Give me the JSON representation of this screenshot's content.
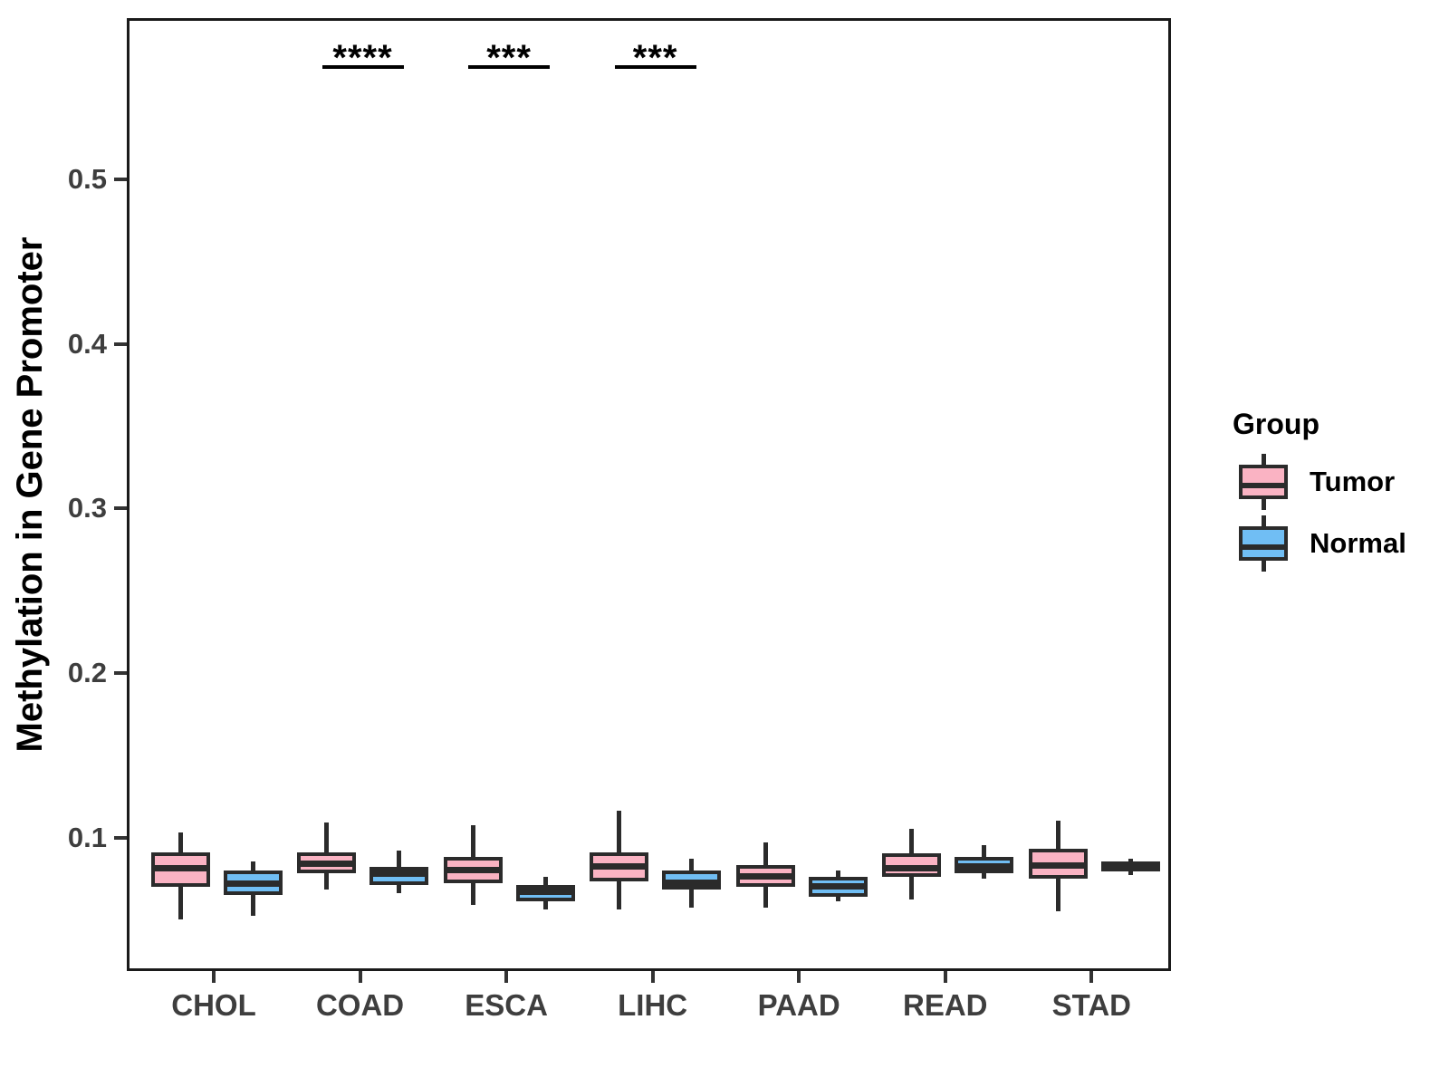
{
  "chart_data": {
    "type": "grouped_boxplot",
    "title": "",
    "xlabel": "",
    "ylabel": "Methylation in Gene Promoter",
    "categories": [
      "CHOL",
      "COAD",
      "ESCA",
      "LIHC",
      "PAAD",
      "READ",
      "STAD"
    ],
    "yticks": [
      0.1,
      0.2,
      0.3,
      0.4,
      0.5
    ],
    "ylim": [
      0.019,
      0.598
    ],
    "grid": false,
    "stroke_color": "#2b2b2b",
    "series": [
      {
        "name": "Tumor",
        "color": "#fab3c3",
        "boxes": [
          {
            "category": "CHOL",
            "low": 0.052,
            "q1": 0.072,
            "median": 0.083,
            "q3": 0.093,
            "high": 0.105
          },
          {
            "category": "COAD",
            "low": 0.07,
            "q1": 0.08,
            "median": 0.086,
            "q3": 0.093,
            "high": 0.111
          },
          {
            "category": "ESCA",
            "low": 0.061,
            "q1": 0.074,
            "median": 0.082,
            "q3": 0.09,
            "high": 0.109
          },
          {
            "category": "LIHC",
            "low": 0.058,
            "q1": 0.075,
            "median": 0.084,
            "q3": 0.093,
            "high": 0.118
          },
          {
            "category": "PAAD",
            "low": 0.059,
            "q1": 0.072,
            "median": 0.078,
            "q3": 0.085,
            "high": 0.099
          },
          {
            "category": "READ",
            "low": 0.064,
            "q1": 0.078,
            "median": 0.083,
            "q3": 0.092,
            "high": 0.107
          },
          {
            "category": "STAD",
            "low": 0.057,
            "q1": 0.077,
            "median": 0.085,
            "q3": 0.095,
            "high": 0.112
          }
        ]
      },
      {
        "name": "Normal",
        "color": "#70bef4",
        "boxes": [
          {
            "category": "CHOL",
            "low": 0.054,
            "q1": 0.067,
            "median": 0.074,
            "q3": 0.082,
            "high": 0.087
          },
          {
            "category": "COAD",
            "low": 0.068,
            "q1": 0.073,
            "median": 0.081,
            "q3": 0.084,
            "high": 0.094
          },
          {
            "category": "ESCA",
            "low": 0.058,
            "q1": 0.063,
            "median": 0.069,
            "q3": 0.073,
            "high": 0.078
          },
          {
            "category": "LIHC",
            "low": 0.059,
            "q1": 0.07,
            "median": 0.074,
            "q3": 0.082,
            "high": 0.089
          },
          {
            "category": "PAAD",
            "low": 0.063,
            "q1": 0.066,
            "median": 0.072,
            "q3": 0.078,
            "high": 0.082
          },
          {
            "category": "READ",
            "low": 0.077,
            "q1": 0.08,
            "median": 0.083,
            "q3": 0.09,
            "high": 0.097
          },
          {
            "category": "STAD",
            "low": 0.079,
            "q1": 0.081,
            "median": 0.084,
            "q3": 0.087,
            "high": 0.089
          }
        ]
      }
    ],
    "significance": [
      {
        "category": "COAD",
        "label": "****"
      },
      {
        "category": "ESCA",
        "label": "***"
      },
      {
        "category": "LIHC",
        "label": "***"
      }
    ],
    "legend": {
      "title": "Group",
      "position": "right",
      "entries": [
        "Tumor",
        "Normal"
      ]
    }
  }
}
